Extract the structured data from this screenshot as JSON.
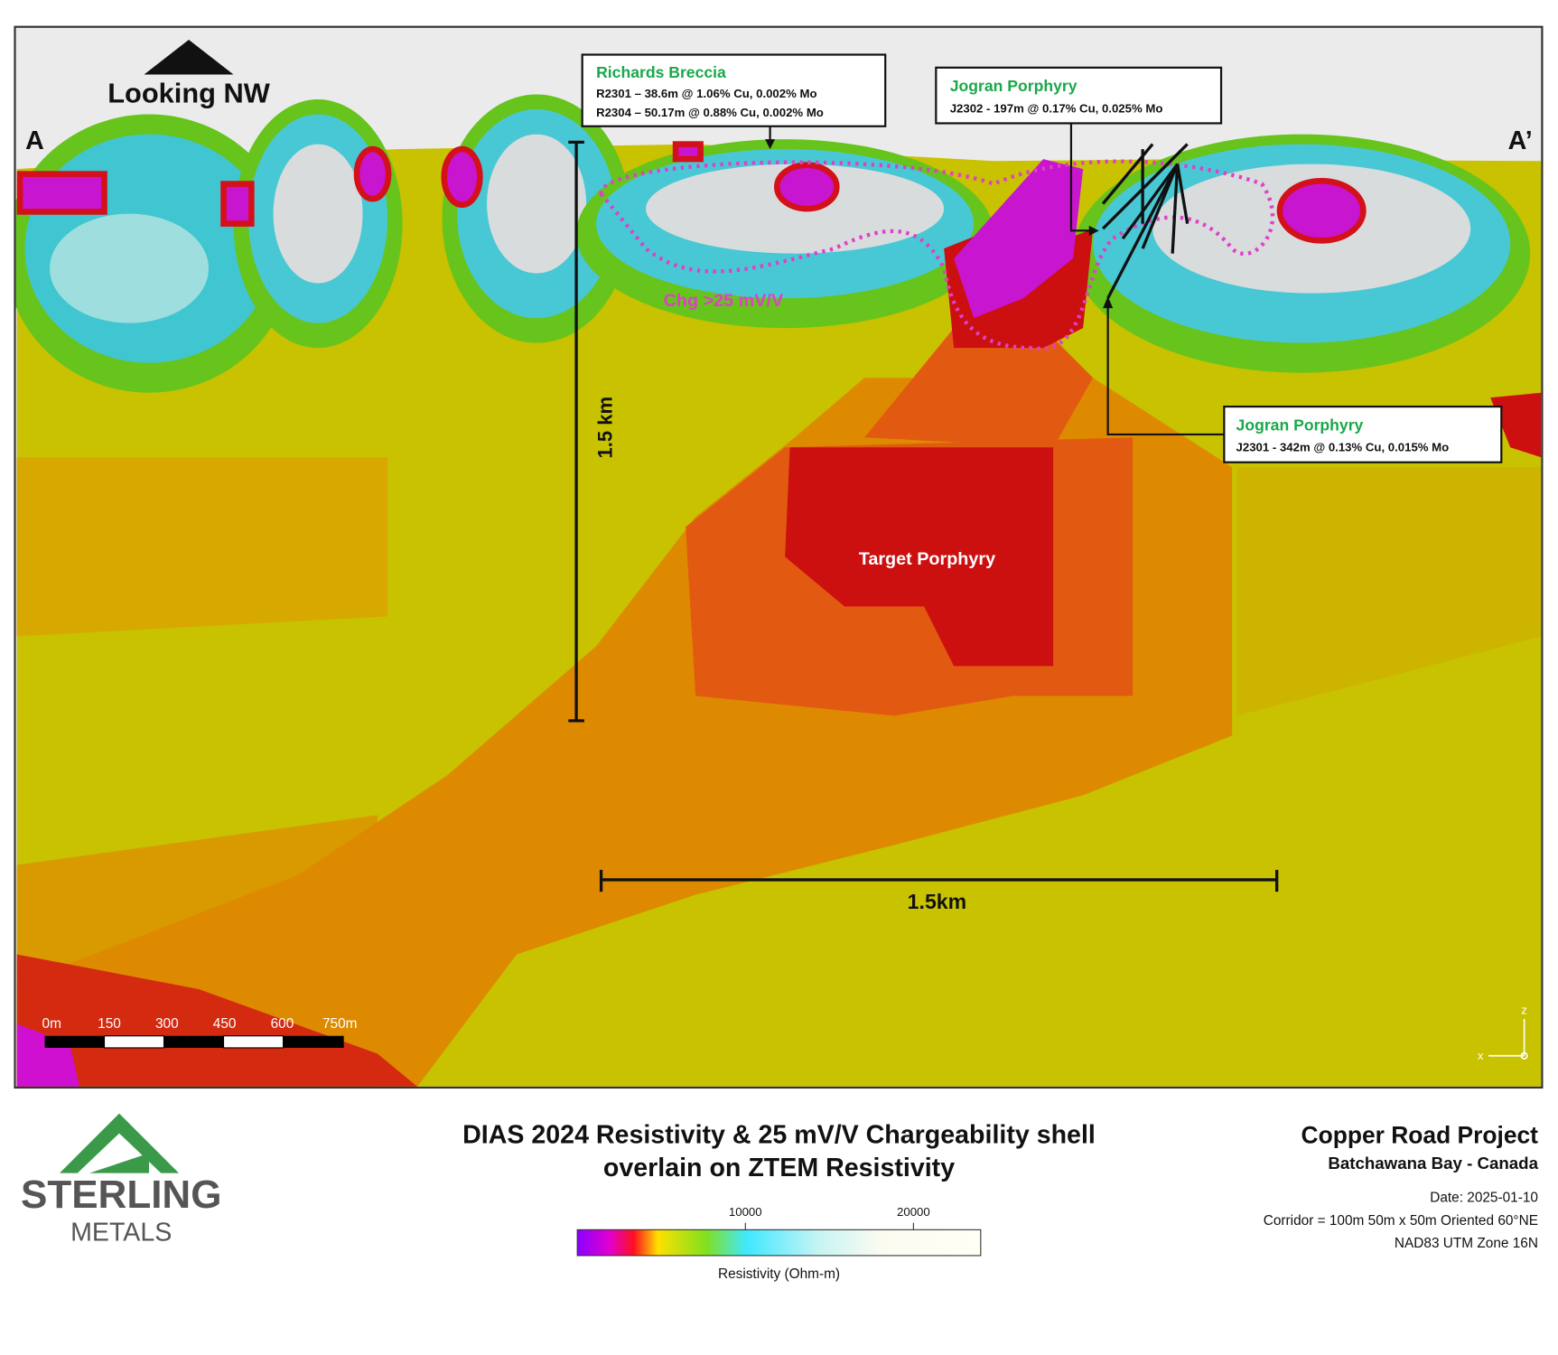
{
  "orientation": "Looking NW",
  "section_ends": {
    "start": "A",
    "end": "A’"
  },
  "callouts": [
    {
      "title": "Richards Breccia",
      "lines": [
        "R2301 – 38.6m @ 1.06% Cu, 0.002% Mo",
        "R2304 – 50.17m @ 0.88% Cu, 0.002% Mo"
      ]
    },
    {
      "title": "Jogran Porphyry",
      "lines": [
        "J2302 - 197m @ 0.17% Cu, 0.025% Mo"
      ]
    },
    {
      "title": "Jogran Porphyry",
      "lines": [
        "J2301 - 342m @ 0.13% Cu, 0.015% Mo"
      ]
    }
  ],
  "labels": {
    "chargeability": "Chg >25 mV/V",
    "target": "Target Porphyry",
    "vertical_scale": "1.5 km",
    "horizontal_scale": "1.5km"
  },
  "scale_bar": {
    "ticks": [
      "0m",
      "150",
      "300",
      "450",
      "600",
      "750m"
    ]
  },
  "axes": {
    "z": "z",
    "x": "x"
  },
  "footer": {
    "logo": {
      "line1": "STERLING",
      "line2": "METALS"
    },
    "title_lines": [
      "DIAS 2024 Resistivity & 25 mV/V Chargeability shell",
      "overlain on ZTEM Resistivity"
    ],
    "project": "Copper Road Project",
    "location": "Batchawana Bay - Canada",
    "date": "Date: 2025-01-10",
    "corridor": "Corridor = 100m  50m x 50m Oriented 60°NE",
    "datum": "NAD83 UTM Zone 16N"
  },
  "colorbar": {
    "lim": [
      0,
      24000
    ],
    "ticks": [
      10000,
      20000
    ],
    "label": "Resistivity (Ohm-m)"
  }
}
